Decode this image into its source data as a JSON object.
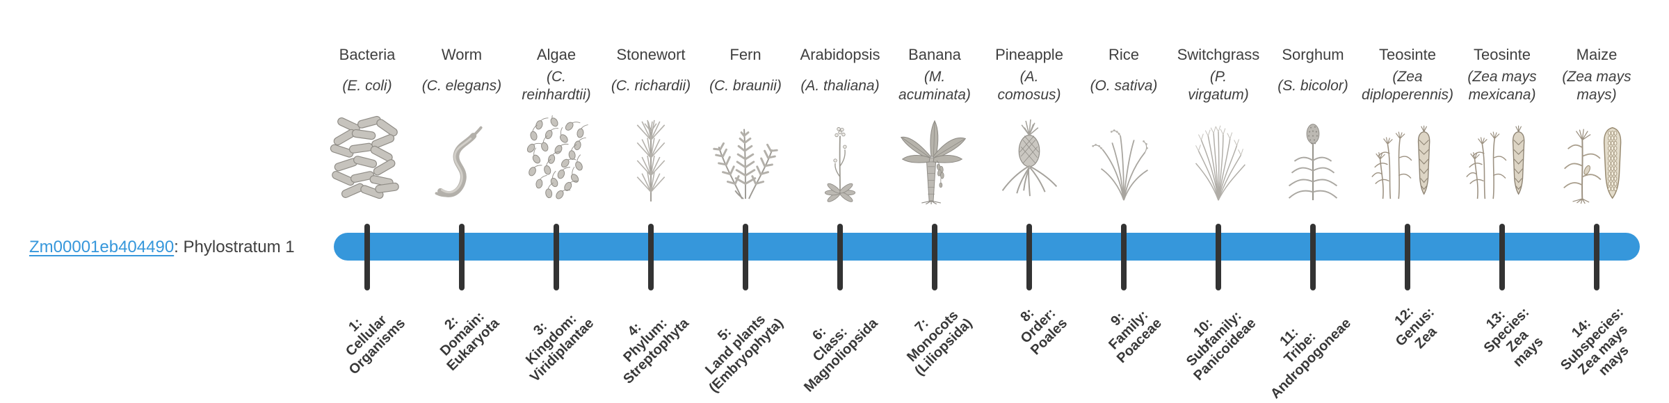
{
  "gene": {
    "id": "Zm00001eb404490",
    "suffix": ": Phylostratum 1"
  },
  "colors": {
    "bar": "#3697db",
    "tick": "#333333",
    "link": "#3697db",
    "text": "#3f3f3f"
  },
  "taxa": [
    {
      "common": "Bacteria",
      "sci_lines": [
        "(E. coli)"
      ],
      "illustration": "bacteria",
      "strat_lines": [
        "1:",
        "Cellular",
        "Organisms"
      ]
    },
    {
      "common": "Worm",
      "sci_lines": [
        "(C. elegans)"
      ],
      "illustration": "worm",
      "strat_lines": [
        "2:",
        "Domain:",
        "Eukaryota"
      ]
    },
    {
      "common": "Algae",
      "sci_lines": [
        "(C.",
        "reinhardtii)"
      ],
      "illustration": "algae",
      "strat_lines": [
        "3:",
        "Kingdom:",
        "Viridiplantae"
      ]
    },
    {
      "common": "Stonewort",
      "sci_lines": [
        "(C. richardii)"
      ],
      "illustration": "stonewort",
      "strat_lines": [
        "4:",
        "Phylum:",
        "Streptophyta"
      ]
    },
    {
      "common": "Fern",
      "sci_lines": [
        "(C. braunii)"
      ],
      "illustration": "fern",
      "strat_lines": [
        "5:",
        "Land plants",
        "(Embryophyta)"
      ]
    },
    {
      "common": "Arabidopsis",
      "sci_lines": [
        "(A. thaliana)"
      ],
      "illustration": "arabidopsis",
      "strat_lines": [
        "6:",
        "Class:",
        "Magnoliopsida"
      ]
    },
    {
      "common": "Banana",
      "sci_lines": [
        "(M.",
        "acuminata)"
      ],
      "illustration": "banana",
      "strat_lines": [
        "7:",
        "Monocots",
        "(Liliopsida)"
      ]
    },
    {
      "common": "Pineapple",
      "sci_lines": [
        "(A.",
        "comosus)"
      ],
      "illustration": "pineapple",
      "strat_lines": [
        "8:",
        "Order:",
        "Poales"
      ]
    },
    {
      "common": "Rice",
      "sci_lines": [
        "(O. sativa)"
      ],
      "illustration": "rice",
      "strat_lines": [
        "9:",
        "Family:",
        "Poaceae"
      ]
    },
    {
      "common": "Switchgrass",
      "sci_lines": [
        "(P.",
        "virgatum)"
      ],
      "illustration": "switchgrass",
      "strat_lines": [
        "10:",
        "Subfamily:",
        "Panicoideae"
      ]
    },
    {
      "common": "Sorghum",
      "sci_lines": [
        "(S. bicolor)"
      ],
      "illustration": "sorghum",
      "strat_lines": [
        "11:",
        "Tribe:",
        "Andropogoneae"
      ]
    },
    {
      "common": "Teosinte",
      "sci_lines": [
        "(Zea",
        "diploperennis)"
      ],
      "illustration": "teosinte",
      "strat_lines": [
        "12:",
        "Genus:",
        "Zea"
      ]
    },
    {
      "common": "Teosinte",
      "sci_lines": [
        "(Zea mays",
        "mexicana)"
      ],
      "illustration": "teosinte",
      "strat_lines": [
        "13:",
        "Species:",
        "Zea",
        "mays"
      ]
    },
    {
      "common": "Maize",
      "sci_lines": [
        "(Zea mays",
        "mays)"
      ],
      "illustration": "maize",
      "strat_lines": [
        "14:",
        "Subspecies:",
        "Zea mays",
        "mays"
      ]
    }
  ]
}
